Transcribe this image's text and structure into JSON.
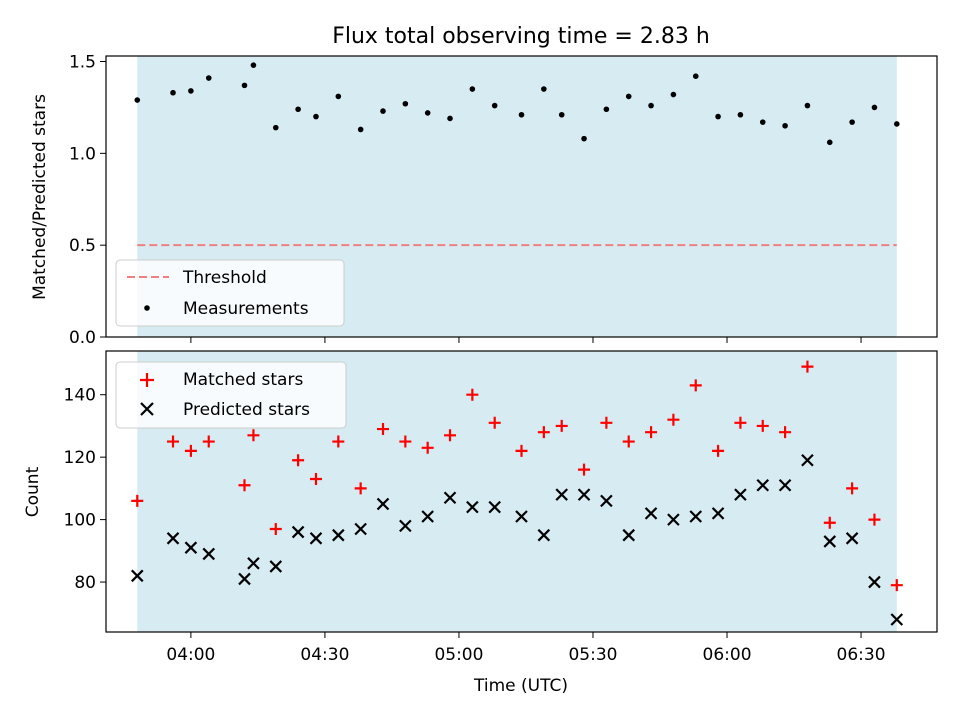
{
  "chart_data": [
    {
      "type": "scatter",
      "title": "Flux total observing time = 2.83 h",
      "xlabel": "",
      "ylabel": "Matched/Predicted stars",
      "ylim": [
        0,
        1.53
      ],
      "yticks": [
        "0.0",
        "0.5",
        "1.0",
        "1.5"
      ],
      "ytick_values": [
        0,
        0.5,
        1.0,
        1.5
      ],
      "grid": false,
      "legend_position": "lower-left",
      "shaded_span": {
        "start": "03:48",
        "end": "06:38",
        "color": "#add8e6"
      },
      "threshold": {
        "name": "Threshold",
        "value": 0.5,
        "color": "#f08080",
        "style": "dashed"
      },
      "series": [
        {
          "name": "Measurements",
          "marker": "dot",
          "color": "#000000",
          "x": [
            "03:48",
            "03:56",
            "04:00",
            "04:04",
            "04:12",
            "04:14",
            "04:19",
            "04:24",
            "04:28",
            "04:33",
            "04:38",
            "04:43",
            "04:48",
            "04:53",
            "04:58",
            "05:03",
            "05:08",
            "05:14",
            "05:19",
            "05:23",
            "05:28",
            "05:33",
            "05:38",
            "05:43",
            "05:48",
            "05:53",
            "05:58",
            "06:03",
            "06:08",
            "06:13",
            "06:18",
            "06:23",
            "06:28",
            "06:33",
            "06:38"
          ],
          "y": [
            1.29,
            1.33,
            1.34,
            1.41,
            1.37,
            1.48,
            1.14,
            1.24,
            1.2,
            1.31,
            1.13,
            1.23,
            1.27,
            1.22,
            1.19,
            1.35,
            1.26,
            1.21,
            1.35,
            1.21,
            1.08,
            1.24,
            1.31,
            1.26,
            1.32,
            1.42,
            1.2,
            1.21,
            1.17,
            1.15,
            1.26,
            1.06,
            1.17,
            1.25,
            1.16
          ]
        }
      ]
    },
    {
      "type": "scatter",
      "title": "",
      "xlabel": "Time (UTC)",
      "ylabel": "Count",
      "ylim": [
        64,
        154
      ],
      "yticks": [
        "80",
        "100",
        "120",
        "140"
      ],
      "ytick_values": [
        80,
        100,
        120,
        140
      ],
      "xlim": [
        "03:41",
        "06:47"
      ],
      "xticks": [
        "04:00",
        "04:30",
        "05:00",
        "05:30",
        "06:00",
        "06:30"
      ],
      "grid": false,
      "legend_position": "top-left",
      "shaded_span": {
        "start": "03:48",
        "end": "06:38",
        "color": "#add8e6"
      },
      "series": [
        {
          "name": "Matched stars",
          "marker": "plus",
          "color": "#ff0000",
          "x": [
            "03:48",
            "03:56",
            "04:00",
            "04:04",
            "04:12",
            "04:14",
            "04:19",
            "04:24",
            "04:28",
            "04:33",
            "04:38",
            "04:43",
            "04:48",
            "04:53",
            "04:58",
            "05:03",
            "05:08",
            "05:14",
            "05:19",
            "05:23",
            "05:28",
            "05:33",
            "05:38",
            "05:43",
            "05:48",
            "05:53",
            "05:58",
            "06:03",
            "06:08",
            "06:13",
            "06:18",
            "06:23",
            "06:28",
            "06:33",
            "06:38"
          ],
          "y": [
            106,
            125,
            122,
            125,
            111,
            127,
            97,
            119,
            113,
            125,
            110,
            129,
            125,
            123,
            127,
            140,
            131,
            122,
            128,
            130,
            116,
            131,
            125,
            128,
            132,
            143,
            122,
            131,
            130,
            128,
            149,
            99,
            110,
            100,
            79
          ]
        },
        {
          "name": "Predicted stars",
          "marker": "x",
          "color": "#000000",
          "x": [
            "03:48",
            "03:56",
            "04:00",
            "04:04",
            "04:12",
            "04:14",
            "04:19",
            "04:24",
            "04:28",
            "04:33",
            "04:38",
            "04:43",
            "04:48",
            "04:53",
            "04:58",
            "05:03",
            "05:08",
            "05:14",
            "05:19",
            "05:23",
            "05:28",
            "05:33",
            "05:38",
            "05:43",
            "05:48",
            "05:53",
            "05:58",
            "06:03",
            "06:08",
            "06:13",
            "06:18",
            "06:23",
            "06:28",
            "06:33",
            "06:38"
          ],
          "y": [
            82,
            94,
            91,
            89,
            81,
            86,
            85,
            96,
            94,
            95,
            97,
            105,
            98,
            101,
            107,
            104,
            104,
            101,
            95,
            108,
            108,
            106,
            95,
            102,
            100,
            101,
            102,
            108,
            111,
            111,
            119,
            93,
            94,
            80,
            68
          ]
        }
      ]
    }
  ]
}
